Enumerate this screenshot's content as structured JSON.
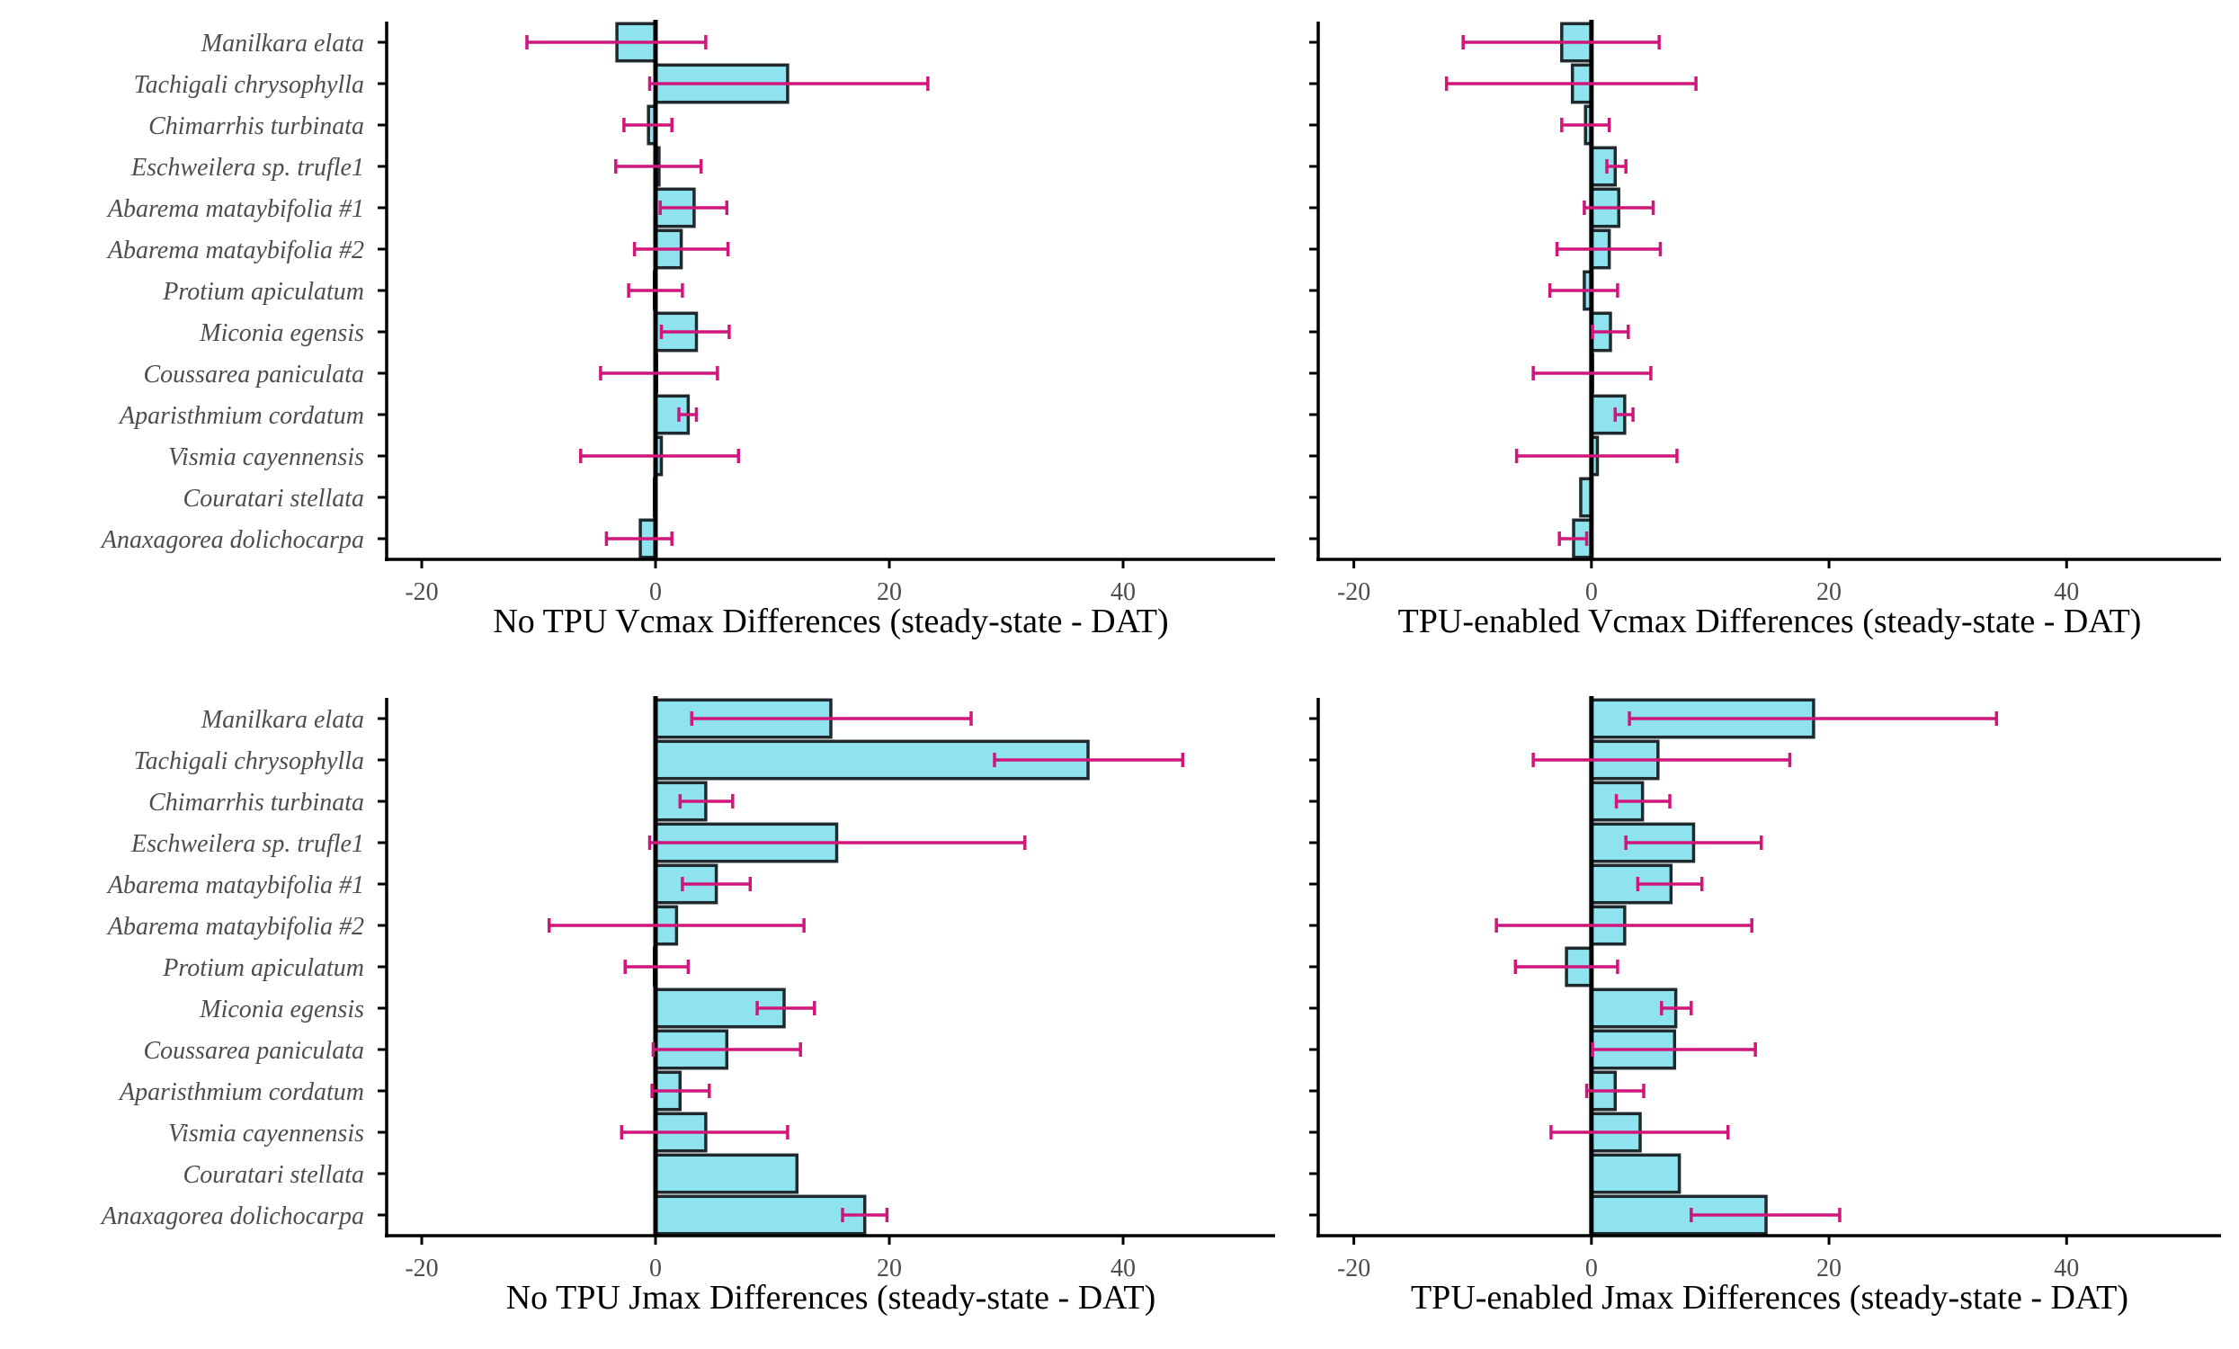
{
  "colors": {
    "bar_fill": "#8fe3ee",
    "bar_stroke": "#1f2a2e",
    "error_bar": "#d0167a",
    "axis": "#000000",
    "text": "#4d4d4d"
  },
  "chart_data": [
    {
      "type": "bar",
      "orientation": "horizontal",
      "xlabel": "No TPU Vcmax Differences (steady-state - DAT)",
      "xlim": [
        -23,
        53
      ],
      "xticks": [
        -20,
        0,
        20,
        40
      ],
      "tick_labels": [
        "-20",
        "0",
        "20",
        "40"
      ],
      "grid": false,
      "categories": [
        "Manilkara elata",
        "Tachigali chrysophylla",
        "Chimarrhis turbinata",
        "Eschweilera sp. trufle1",
        "Abarema mataybifolia #1",
        "Abarema mataybifolia #2",
        "Protium apiculatum",
        "Miconia egensis",
        "Coussarea paniculata",
        "Aparisthmium cordatum",
        "Vismia cayennensis",
        "Couratari stellata",
        "Anaxagorea dolichocarpa"
      ],
      "values": [
        -3.3,
        11.3,
        -0.6,
        0.3,
        3.3,
        2.2,
        -0.1,
        3.5,
        0.1,
        2.8,
        0.5,
        -0.1,
        -1.3
      ],
      "error_low": [
        -11.0,
        -0.5,
        -2.7,
        -3.4,
        0.4,
        -1.8,
        -2.3,
        0.5,
        -4.7,
        2.0,
        -6.4,
        null,
        -4.2
      ],
      "error_high": [
        4.3,
        23.3,
        1.4,
        3.9,
        6.1,
        6.2,
        2.3,
        6.3,
        5.3,
        3.5,
        7.1,
        null,
        1.4
      ]
    },
    {
      "type": "bar",
      "orientation": "horizontal",
      "xlabel": "TPU-enabled Vcmax Differences (steady-state - DAT)",
      "xlim": [
        -23,
        53
      ],
      "xticks": [
        -20,
        0,
        20,
        40
      ],
      "tick_labels": [
        "-20",
        "0",
        "20",
        "40"
      ],
      "grid": false,
      "categories": [
        "Manilkara elata",
        "Tachigali chrysophylla",
        "Chimarrhis turbinata",
        "Eschweilera sp. trufle1",
        "Abarema mataybifolia #1",
        "Abarema mataybifolia #2",
        "Protium apiculatum",
        "Miconia egensis",
        "Coussarea paniculata",
        "Aparisthmium cordatum",
        "Vismia cayennensis",
        "Couratari stellata",
        "Anaxagorea dolichocarpa"
      ],
      "values": [
        -2.5,
        -1.6,
        -0.5,
        2.0,
        2.3,
        1.5,
        -0.6,
        1.6,
        0.1,
        2.8,
        0.5,
        -0.9,
        -1.5
      ],
      "error_low": [
        -10.8,
        -12.2,
        -2.5,
        1.3,
        -0.6,
        -2.9,
        -3.5,
        0.1,
        -4.9,
        2.0,
        -6.3,
        null,
        -2.7
      ],
      "error_high": [
        5.7,
        8.8,
        1.5,
        2.9,
        5.2,
        5.8,
        2.2,
        3.1,
        5.0,
        3.5,
        7.2,
        null,
        -0.4
      ]
    },
    {
      "type": "bar",
      "orientation": "horizontal",
      "xlabel": "No TPU Jmax Differences (steady-state - DAT)",
      "xlim": [
        -23,
        53
      ],
      "xticks": [
        -20,
        0,
        20,
        40
      ],
      "tick_labels": [
        "-20",
        "0",
        "20",
        "40"
      ],
      "grid": false,
      "categories": [
        "Manilkara elata",
        "Tachigali chrysophylla",
        "Chimarrhis turbinata",
        "Eschweilera sp. trufle1",
        "Abarema mataybifolia #1",
        "Abarema mataybifolia #2",
        "Protium apiculatum",
        "Miconia egensis",
        "Coussarea paniculata",
        "Aparisthmium cordatum",
        "Vismia cayennensis",
        "Couratari stellata",
        "Anaxagorea dolichocarpa"
      ],
      "values": [
        15.0,
        37.0,
        4.3,
        15.5,
        5.2,
        1.8,
        -0.1,
        11.0,
        6.1,
        2.1,
        4.3,
        12.1,
        17.9
      ],
      "error_low": [
        3.1,
        29.0,
        2.1,
        -0.5,
        2.3,
        -9.1,
        -2.6,
        8.7,
        -0.2,
        -0.3,
        -2.9,
        null,
        16.0
      ],
      "error_high": [
        27.0,
        45.1,
        6.6,
        31.6,
        8.1,
        12.7,
        2.8,
        13.6,
        12.4,
        4.6,
        11.3,
        null,
        19.8
      ]
    },
    {
      "type": "bar",
      "orientation": "horizontal",
      "xlabel": "TPU-enabled Jmax Differences (steady-state - DAT)",
      "xlim": [
        -23,
        53
      ],
      "xticks": [
        -20,
        0,
        20,
        40
      ],
      "tick_labels": [
        "-20",
        "0",
        "20",
        "40"
      ],
      "grid": false,
      "categories": [
        "Manilkara elata",
        "Tachigali chrysophylla",
        "Chimarrhis turbinata",
        "Eschweilera sp. trufle1",
        "Abarema mataybifolia #1",
        "Abarema mataybifolia #2",
        "Protium apiculatum",
        "Miconia egensis",
        "Coussarea paniculata",
        "Aparisthmium cordatum",
        "Vismia cayennensis",
        "Couratari stellata",
        "Anaxagorea dolichocarpa"
      ],
      "values": [
        18.7,
        5.6,
        4.3,
        8.6,
        6.7,
        2.8,
        -2.1,
        7.1,
        7.0,
        2.0,
        4.1,
        7.4,
        14.7
      ],
      "error_low": [
        3.2,
        -4.9,
        2.1,
        2.9,
        3.9,
        -8.0,
        -6.4,
        5.9,
        0.1,
        -0.4,
        -3.4,
        null,
        8.4
      ],
      "error_high": [
        34.1,
        16.7,
        6.6,
        14.3,
        9.3,
        13.5,
        2.2,
        8.4,
        13.8,
        4.4,
        11.5,
        null,
        20.9
      ]
    }
  ]
}
